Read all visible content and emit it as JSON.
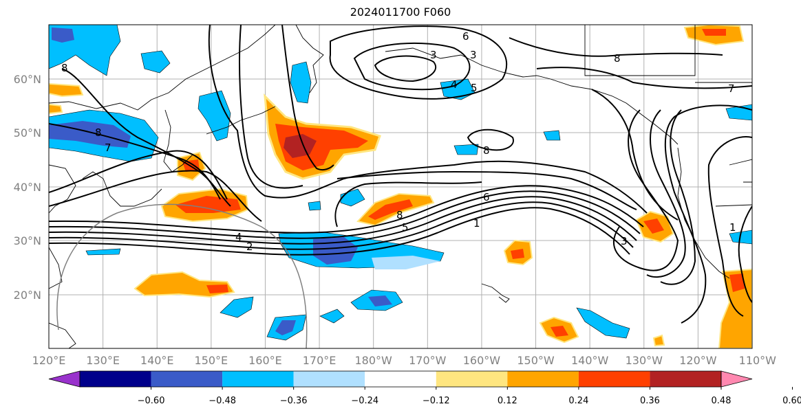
{
  "title": "2024011700 F060",
  "map": {
    "lat_labels": [
      "60°N",
      "50°N",
      "40°N",
      "30°N",
      "20°N"
    ],
    "lon_labels": [
      "120°E",
      "130°E",
      "140°E",
      "150°E",
      "160°E",
      "170°E",
      "180°W",
      "170°W",
      "160°W",
      "150°W",
      "140°W",
      "130°W",
      "120°W",
      "110°W"
    ],
    "contour_labels": [
      "6",
      "3",
      "3",
      "4",
      "5",
      "8",
      "7",
      "8",
      "7",
      "8",
      "8",
      "6",
      "5",
      "1",
      "4",
      "2",
      "8",
      "3",
      "1"
    ],
    "contour_color": "#000000",
    "coast_color": "#000000",
    "grid_color": "#b0b0b0"
  },
  "colorbar": {
    "colors": [
      "#9932cc",
      "#00008b",
      "#3a5bc8",
      "#00bfff",
      "#b0e0ff",
      "#ffffff",
      "#ffe680",
      "#ffa500",
      "#ff4000",
      "#b22222",
      "#ff88b0"
    ],
    "tick_labels": [
      "−0.60",
      "−0.48",
      "−0.36",
      "−0.24",
      "−0.12",
      "0.12",
      "0.24",
      "0.36",
      "0.48",
      "0.60"
    ]
  }
}
